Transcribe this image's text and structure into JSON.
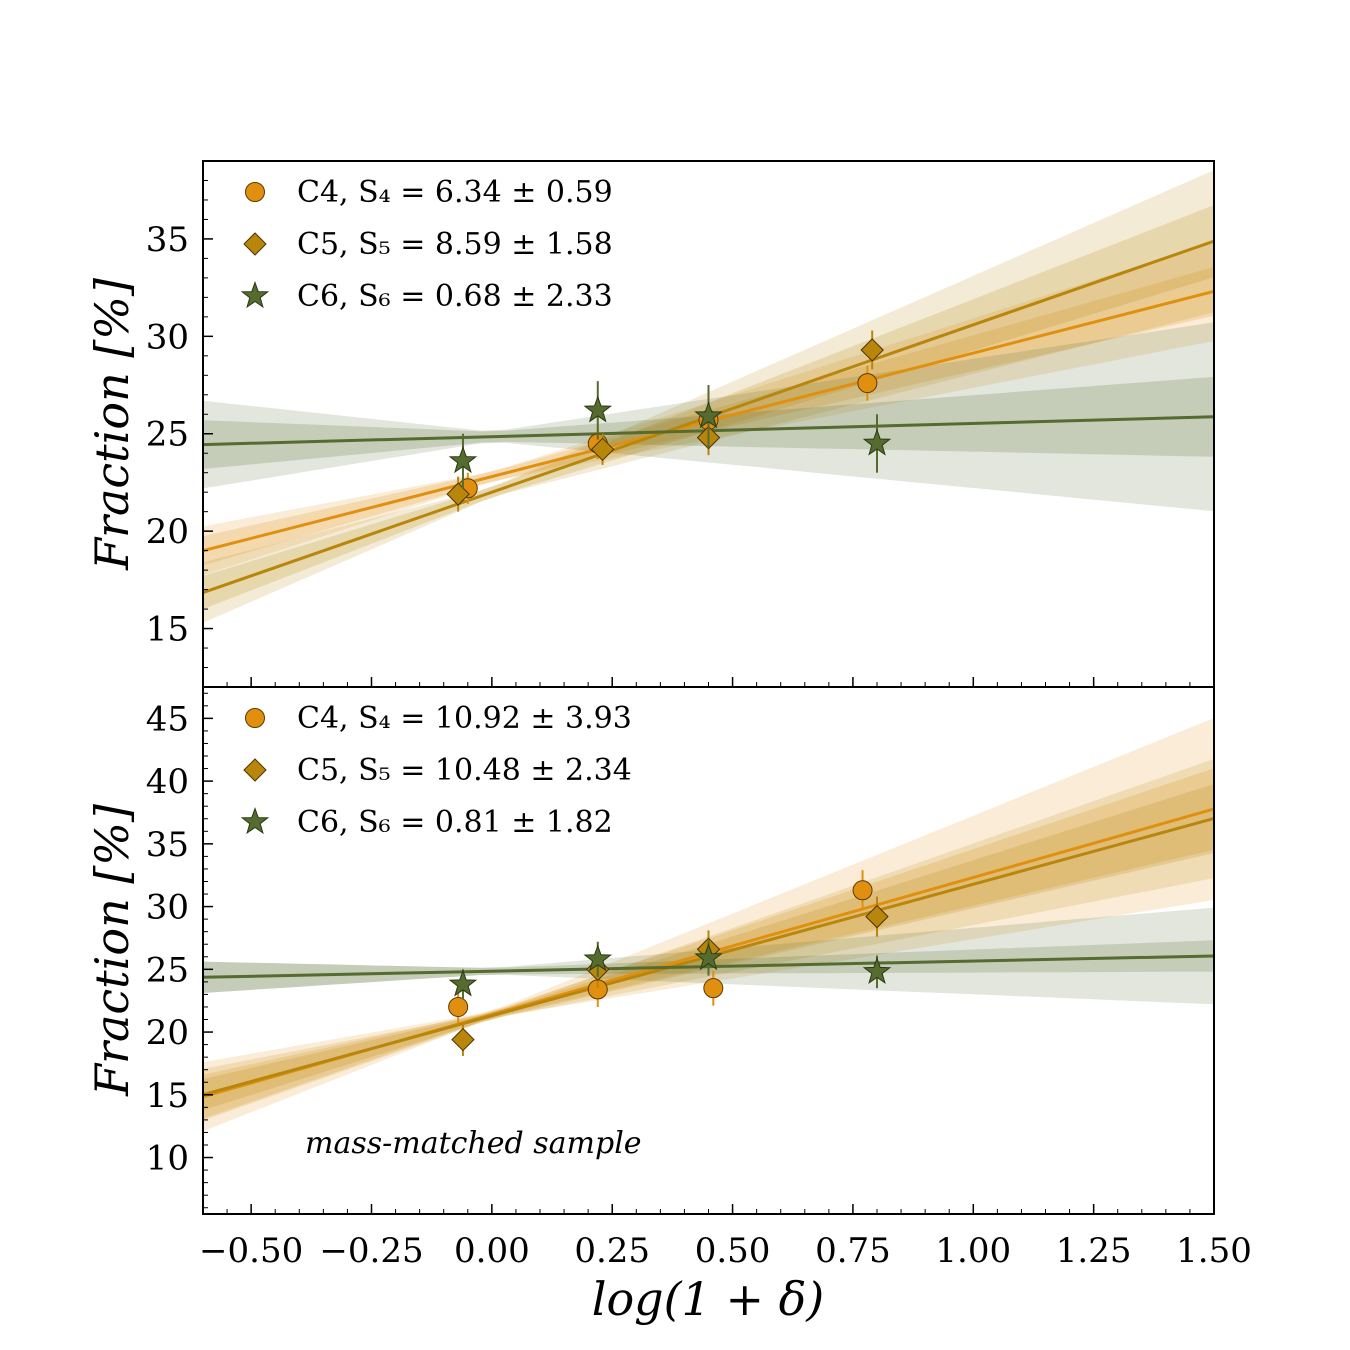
{
  "chart_data": [
    {
      "type": "scatter",
      "panel": "top",
      "xlabel": "log(1 + δ)",
      "ylabel": "Fraction [%]",
      "xlim": [
        -0.6,
        1.5
      ],
      "ylim": [
        12,
        39
      ],
      "yticks": [
        15,
        20,
        25,
        30,
        35
      ],
      "annotation": "",
      "series": [
        {
          "name": "C4",
          "legend": "C4,  S₄ = 6.34 ± 0.59",
          "marker": "circle",
          "color": "#E0900E",
          "x": [
            -0.05,
            0.22,
            0.45,
            0.78
          ],
          "y": [
            22.2,
            24.5,
            25.7,
            27.6
          ],
          "err": [
            0.8,
            0.8,
            0.8,
            0.9
          ],
          "fit": {
            "intercept": 22.8,
            "slope": 6.34
          },
          "band1": [
            0.5,
            1.0
          ],
          "band2": [
            1.0,
            2.3
          ]
        },
        {
          "name": "C5",
          "legend": "C5,  S₅ = 8.59 ± 1.58",
          "marker": "diamond",
          "color": "#B8860B",
          "x": [
            -0.07,
            0.23,
            0.45,
            0.79
          ],
          "y": [
            21.9,
            24.2,
            24.8,
            29.3
          ],
          "err": [
            0.9,
            0.8,
            0.9,
            1.0
          ],
          "fit": {
            "intercept": 22.0,
            "slope": 8.59
          },
          "band1": [
            0.6,
            1.6
          ],
          "band2": [
            1.3,
            3.4
          ]
        },
        {
          "name": "C6",
          "legend": "C6,  S₆ = 0.68 ± 2.33",
          "marker": "star",
          "color": "#556B2F",
          "x": [
            -0.06,
            0.22,
            0.45,
            0.8
          ],
          "y": [
            23.6,
            26.2,
            25.9,
            24.5
          ],
          "err": [
            1.4,
            1.5,
            1.6,
            1.5
          ],
          "fit": {
            "intercept": 24.85,
            "slope": 0.68
          },
          "band1": [
            1.0,
            1.8
          ],
          "band2": [
            2.0,
            4.6
          ]
        }
      ]
    },
    {
      "type": "scatter",
      "panel": "bottom",
      "xlabel": "log(1 + δ)",
      "ylabel": "Fraction [%]",
      "xlim": [
        -0.6,
        1.5
      ],
      "ylim": [
        5.5,
        47.5
      ],
      "yticks": [
        10,
        15,
        20,
        25,
        30,
        35,
        40,
        45
      ],
      "xticks": [
        "−0.50",
        "−0.25",
        "0.00",
        "0.25",
        "0.50",
        "0.75",
        "1.00",
        "1.25",
        "1.50"
      ],
      "annotation": "mass-matched sample",
      "series": [
        {
          "name": "C4",
          "legend": "C4,  S₄ = 10.92 ± 3.93",
          "marker": "circle",
          "color": "#E0900E",
          "x": [
            -0.07,
            0.22,
            0.46,
            0.77
          ],
          "y": [
            22.0,
            23.4,
            23.5,
            31.3
          ],
          "err": [
            1.3,
            1.4,
            1.4,
            1.6
          ],
          "fit": {
            "intercept": 21.4,
            "slope": 10.92
          },
          "band1": [
            1.5,
            3.0
          ],
          "band2": [
            2.5,
            7.0
          ]
        },
        {
          "name": "C5",
          "legend": "C5,  S₅ = 10.48 ± 2.34",
          "marker": "diamond",
          "color": "#B8860B",
          "x": [
            -0.06,
            0.22,
            0.45,
            0.8
          ],
          "y": [
            19.4,
            25.0,
            26.6,
            29.2
          ],
          "err": [
            1.3,
            1.5,
            1.5,
            1.6
          ],
          "fit": {
            "intercept": 21.3,
            "slope": 10.48
          },
          "band1": [
            1.0,
            2.5
          ],
          "band2": [
            1.8,
            4.5
          ]
        },
        {
          "name": "C6",
          "legend": "C6,  S₆ = 0.81 ± 1.82",
          "marker": "star",
          "color": "#556B2F",
          "x": [
            -0.06,
            0.22,
            0.45,
            0.8
          ],
          "y": [
            23.8,
            25.8,
            25.9,
            24.8
          ],
          "err": [
            1.2,
            1.4,
            1.4,
            1.3
          ],
          "fit": {
            "intercept": 24.85,
            "slope": 0.81
          },
          "band1": [
            1.0,
            1.0
          ],
          "band2": [
            1.0,
            3.6
          ]
        }
      ]
    }
  ]
}
